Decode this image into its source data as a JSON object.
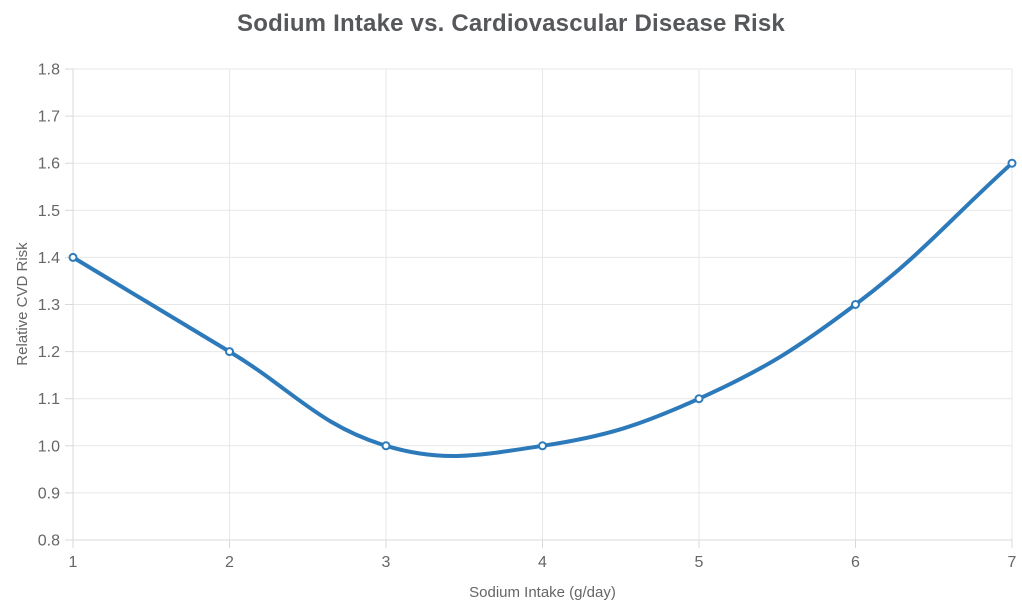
{
  "chart_data": {
    "type": "line",
    "title": "Sodium Intake vs. Cardiovascular Disease Risk",
    "xlabel": "Sodium Intake (g/day)",
    "ylabel": "Relative CVD Risk",
    "x": [
      1,
      2,
      3,
      4,
      5,
      6,
      7
    ],
    "values": [
      1.4,
      1.2,
      1.0,
      1.0,
      1.1,
      1.3,
      1.6
    ],
    "series": [
      {
        "name": "Relative CVD Risk",
        "values": [
          1.4,
          1.2,
          1.0,
          1.0,
          1.1,
          1.3,
          1.6
        ]
      }
    ],
    "xlim": [
      1,
      7
    ],
    "ylim": [
      0.8,
      1.8
    ],
    "xticks": [
      "1",
      "2",
      "3",
      "4",
      "5",
      "6",
      "7"
    ],
    "yticks": [
      "0.8",
      "0.9",
      "1.0",
      "1.1",
      "1.2",
      "1.3",
      "1.4",
      "1.5",
      "1.6",
      "1.7",
      "1.8"
    ],
    "grid": true,
    "legend_position": "none",
    "curve": "smooth",
    "tension": 0.4,
    "colors": {
      "line": "#2d7abb",
      "point_border": "#2d7abb",
      "point_fill": "#ffffff",
      "grid": "#e7e7e7",
      "axis_border": "#d9d9d9",
      "tick_mark": "#d9d9d9",
      "tick_text": "#666666",
      "axis_title_text": "#666666",
      "title_text": "#55575a",
      "background": "#ffffff"
    }
  }
}
